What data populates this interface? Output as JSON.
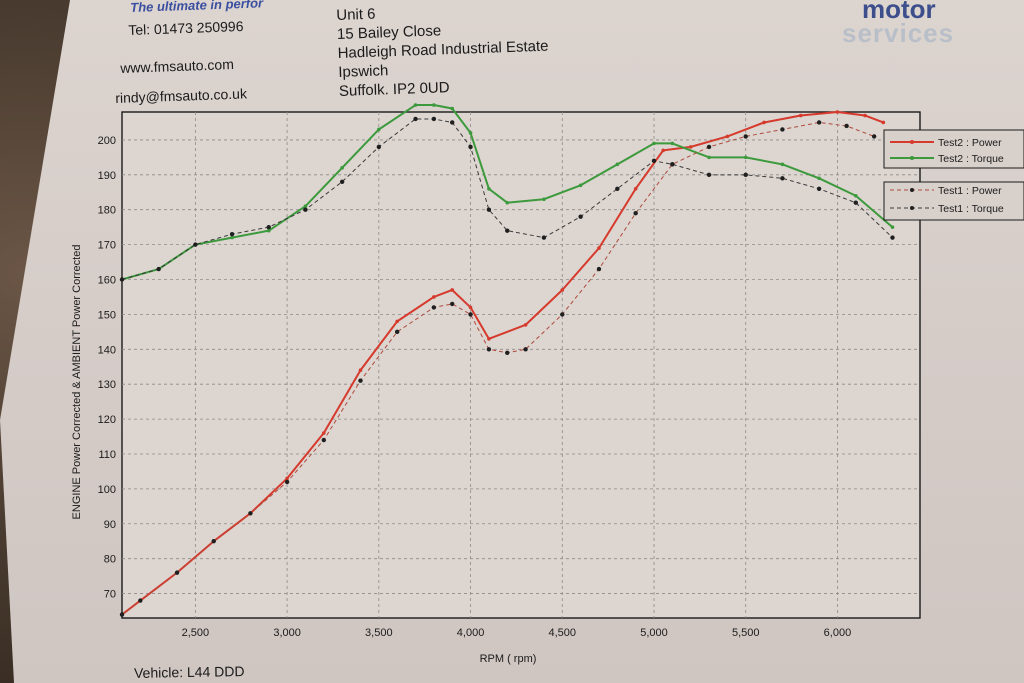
{
  "header": {
    "tagline": "The ultimate in perfor",
    "tel": "Tel: 01473 250996",
    "web": "www.fmsauto.com",
    "email": "rindy@fmsauto.co.uk",
    "address": [
      "Unit 6",
      "15 Bailey Close",
      "Hadleigh Road Industrial Estate",
      "Ipswich",
      "Suffolk. IP2 0UD"
    ],
    "logo_line1": "motor",
    "logo_line2": "services"
  },
  "footer": {
    "vehicle": "Vehicle: L44 DDD"
  },
  "chart_data": {
    "type": "line",
    "xlabel": "RPM ( rpm)",
    "ylabel": "ENGINE Power Corrected & AMBIENT Power Corrected",
    "xlim": [
      2100,
      6450
    ],
    "ylim": [
      63,
      208
    ],
    "xticks": [
      2500,
      3000,
      3500,
      4000,
      4500,
      5000,
      5500,
      6000
    ],
    "xtick_labels": [
      "2,500",
      "3,000",
      "3,500",
      "4,000",
      "4,500",
      "5,000",
      "5,500",
      "6,000"
    ],
    "yticks": [
      70,
      80,
      90,
      100,
      110,
      120,
      130,
      140,
      150,
      160,
      170,
      180,
      190,
      200
    ],
    "grid": true,
    "legend_position": "right",
    "series": [
      {
        "name": "Test2 : Power",
        "color": "#d63a2c",
        "style": "solid",
        "x": [
          2100,
          2200,
          2400,
          2600,
          2800,
          3000,
          3200,
          3400,
          3600,
          3800,
          3900,
          4000,
          4100,
          4300,
          4500,
          4700,
          4900,
          5050,
          5200,
          5400,
          5600,
          5800,
          6000,
          6150,
          6250
        ],
        "y": [
          64,
          68,
          76,
          85,
          93,
          103,
          116,
          134,
          148,
          155,
          157,
          152,
          143,
          147,
          157,
          169,
          186,
          197,
          198,
          201,
          205,
          207,
          208,
          207,
          205
        ]
      },
      {
        "name": "Test2 : Torque",
        "color": "#3c9a3c",
        "style": "solid",
        "x": [
          2100,
          2300,
          2500,
          2700,
          2900,
          3100,
          3300,
          3500,
          3700,
          3800,
          3900,
          4000,
          4100,
          4200,
          4400,
          4600,
          4800,
          5000,
          5100,
          5300,
          5500,
          5700,
          5900,
          6100,
          6300
        ],
        "y": [
          160,
          163,
          170,
          172,
          174,
          181,
          192,
          203,
          210,
          210,
          209,
          202,
          186,
          182,
          183,
          187,
          193,
          199,
          199,
          195,
          195,
          193,
          189,
          184,
          175
        ]
      },
      {
        "name": "Test1 : Power",
        "color": "#b04a3c",
        "style": "dashed",
        "x": [
          2100,
          2200,
          2400,
          2600,
          2800,
          3000,
          3200,
          3400,
          3600,
          3800,
          3900,
          4000,
          4100,
          4200,
          4300,
          4500,
          4700,
          4900,
          5100,
          5300,
          5500,
          5700,
          5900,
          6050,
          6200
        ],
        "y": [
          64,
          68,
          76,
          85,
          93,
          102,
          114,
          131,
          145,
          152,
          153,
          150,
          140,
          139,
          140,
          150,
          163,
          179,
          193,
          198,
          201,
          203,
          205,
          204,
          201
        ]
      },
      {
        "name": "Test1 : Torque",
        "color": "#3a3a3a",
        "style": "dashed",
        "x": [
          2100,
          2300,
          2500,
          2700,
          2900,
          3100,
          3300,
          3500,
          3700,
          3800,
          3900,
          4000,
          4100,
          4200,
          4400,
          4600,
          4800,
          5000,
          5100,
          5300,
          5500,
          5700,
          5900,
          6100,
          6300
        ],
        "y": [
          160,
          163,
          170,
          173,
          175,
          180,
          188,
          198,
          206,
          206,
          205,
          198,
          180,
          174,
          172,
          178,
          186,
          194,
          193,
          190,
          190,
          189,
          186,
          182,
          172
        ]
      }
    ]
  }
}
